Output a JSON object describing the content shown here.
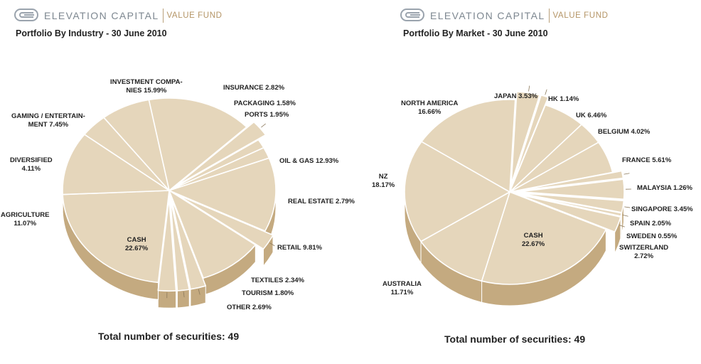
{
  "brand": {
    "name": "ELEVATION CAPITAL",
    "sub": "VALUE FUND"
  },
  "colors": {
    "face": "#e5d6bb",
    "side": "#c4aa80",
    "edge": "#ffffff",
    "text": "#222222",
    "brand_grey": "#7d8790",
    "brand_gold": "#b49465"
  },
  "chart_data": [
    {
      "type": "pie",
      "title": "Portfolio By Industry - 30 June 2010",
      "footer": "Total number of securities: 49",
      "categories": [
        "INVESTMENT COMPANIES",
        "INSURANCE",
        "PACKAGING",
        "PORTS",
        "OIL & GAS",
        "REAL ESTATE",
        "RETAIL",
        "TEXTILES",
        "TOURISM",
        "OTHER",
        "CASH",
        "AGRICULTURE",
        "DIVERSIFIED",
        "GAMING / ENTERTAINMENT"
      ],
      "values": [
        15.99,
        2.82,
        1.58,
        1.95,
        12.93,
        2.79,
        9.81,
        2.34,
        1.8,
        2.69,
        22.67,
        11.07,
        4.11,
        7.45
      ],
      "exploded": [
        false,
        true,
        false,
        false,
        false,
        true,
        false,
        true,
        true,
        true,
        false,
        false,
        false,
        false
      ],
      "labels": [
        {
          "lines": [
            "INVESTMENT COMPA-",
            "NIES 15.99%"
          ]
        },
        {
          "lines": [
            "INSURANCE 2.82%"
          ]
        },
        {
          "lines": [
            "PACKAGING 1.58%"
          ]
        },
        {
          "lines": [
            "PORTS 1.95%"
          ]
        },
        {
          "lines": [
            "OIL & GAS 12.93%"
          ]
        },
        {
          "lines": [
            "REAL ESTATE 2.79%"
          ]
        },
        {
          "lines": [
            "RETAIL 9.81%"
          ]
        },
        {
          "lines": [
            "TEXTILES 2.34%"
          ]
        },
        {
          "lines": [
            "TOURISM 1.80%"
          ]
        },
        {
          "lines": [
            "OTHER 2.69%"
          ]
        },
        {
          "lines": [
            "CASH",
            "22.67%"
          ]
        },
        {
          "lines": [
            "AGRICULTURE",
            "11.07%"
          ]
        },
        {
          "lines": [
            "DIVERSIFIED",
            "4.11%"
          ]
        },
        {
          "lines": [
            "GAMING / ENTERTAIN-",
            "MENT 7.45%"
          ]
        }
      ]
    },
    {
      "type": "pie",
      "title": "Portfolio By Market - 30 June 2010",
      "footer": "Total number of securities: 49",
      "categories": [
        "JAPAN",
        "HK",
        "UK",
        "BELGIUM",
        "FRANCE",
        "MALAYSIA",
        "SINGAPORE",
        "SPAIN",
        "SWEDEN",
        "SWITZERLAND",
        "CASH",
        "AUSTRALIA",
        "NZ",
        "NORTH AMERICA"
      ],
      "values": [
        3.53,
        1.14,
        6.46,
        4.02,
        5.61,
        1.26,
        3.45,
        2.05,
        0.55,
        2.72,
        22.67,
        11.71,
        18.17,
        16.66
      ],
      "exploded": [
        true,
        true,
        false,
        false,
        false,
        true,
        true,
        true,
        true,
        true,
        false,
        false,
        false,
        false
      ],
      "labels": [
        {
          "lines": [
            "JAPAN 3.53%"
          ]
        },
        {
          "lines": [
            "HK 1.14%"
          ]
        },
        {
          "lines": [
            "UK 6.46%"
          ]
        },
        {
          "lines": [
            "BELGIUM 4.02%"
          ]
        },
        {
          "lines": [
            "FRANCE 5.61%"
          ]
        },
        {
          "lines": [
            "MALAYSIA 1.26%"
          ]
        },
        {
          "lines": [
            "SINGAPORE 3.45%"
          ]
        },
        {
          "lines": [
            "SPAIN 2.05%"
          ]
        },
        {
          "lines": [
            "SWEDEN 0.55%"
          ]
        },
        {
          "lines": [
            "SWITZERLAND",
            "2.72%"
          ]
        },
        {
          "lines": [
            "CASH",
            "22.67%"
          ]
        },
        {
          "lines": [
            "AUSTRALIA",
            "11.71%"
          ]
        },
        {
          "lines": [
            "NZ",
            "18.17%"
          ]
        },
        {
          "lines": [
            "NORTH AMERICA",
            "16.66%"
          ]
        }
      ]
    }
  ]
}
